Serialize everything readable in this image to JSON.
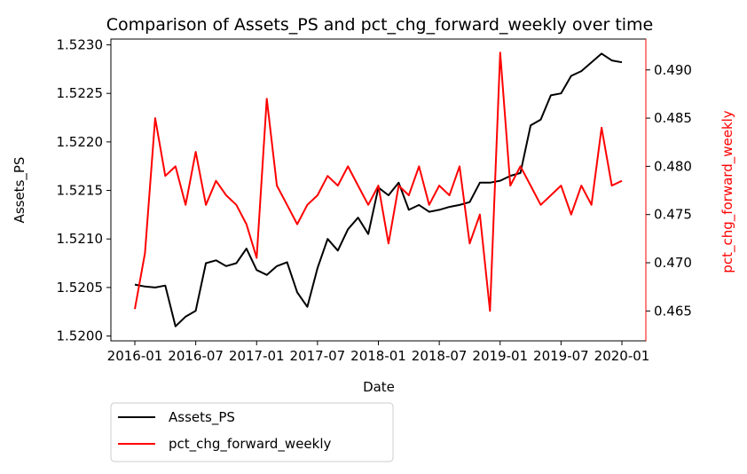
{
  "chart_data": {
    "type": "line",
    "title": "Comparison of Assets_PS and pct_chg_forward_weekly over time",
    "xlabel": "Date",
    "x_ticks": [
      "2016-01",
      "2016-07",
      "2017-01",
      "2017-07",
      "2018-01",
      "2018-07",
      "2019-01",
      "2019-07",
      "2020-01"
    ],
    "xlim": [
      "2016-01",
      "2020-01"
    ],
    "left_axis": {
      "label": "Assets_PS",
      "color": "#000000",
      "ylim": [
        1.51995,
        1.52306
      ],
      "ticks": [
        "1.5200",
        "1.5205",
        "1.5210",
        "1.5215",
        "1.5220",
        "1.5225",
        "1.5230"
      ]
    },
    "right_axis": {
      "label": "pct_chg_forward_weekly",
      "color": "#ff0000",
      "ylim": [
        0.4619,
        0.4932
      ],
      "ticks": [
        "0.465",
        "0.470",
        "0.475",
        "0.480",
        "0.485",
        "0.490"
      ]
    },
    "legend": {
      "placement": "below-left",
      "entries": [
        "Assets_PS",
        "pct_chg_forward_weekly"
      ]
    },
    "series": [
      {
        "name": "Assets_PS",
        "axis": "left",
        "color": "#000000",
        "x": [
          "2016-01",
          "2016-02",
          "2016-03",
          "2016-04",
          "2016-05",
          "2016-06",
          "2016-07",
          "2016-08",
          "2016-09",
          "2016-10",
          "2016-11",
          "2016-12",
          "2017-01",
          "2017-02",
          "2017-03",
          "2017-04",
          "2017-05",
          "2017-06",
          "2017-07",
          "2017-08",
          "2017-09",
          "2017-10",
          "2017-11",
          "2017-12",
          "2018-01",
          "2018-02",
          "2018-03",
          "2018-04",
          "2018-05",
          "2018-06",
          "2018-07",
          "2018-08",
          "2018-09",
          "2018-10",
          "2018-11",
          "2018-12",
          "2019-01",
          "2019-02",
          "2019-03",
          "2019-04",
          "2019-05",
          "2019-06",
          "2019-07",
          "2019-08",
          "2019-09",
          "2019-10",
          "2019-11",
          "2019-12",
          "2020-01"
        ],
        "values": [
          1.52053,
          1.52051,
          1.5205,
          1.52052,
          1.5201,
          1.5202,
          1.52026,
          1.52075,
          1.52078,
          1.52072,
          1.52075,
          1.5209,
          1.52068,
          1.52063,
          1.52072,
          1.52076,
          1.52045,
          1.5203,
          1.5207,
          1.521,
          1.52088,
          1.5211,
          1.52122,
          1.52105,
          1.52153,
          1.52145,
          1.52158,
          1.5213,
          1.52135,
          1.52128,
          1.5213,
          1.52133,
          1.52135,
          1.52138,
          1.52158,
          1.52158,
          1.5216,
          1.52165,
          1.52168,
          1.52217,
          1.52223,
          1.52248,
          1.5225,
          1.52268,
          1.52273,
          1.52282,
          1.52291,
          1.52284,
          1.52282
        ]
      },
      {
        "name": "pct_chg_forward_weekly",
        "axis": "right",
        "color": "#ff0000",
        "x": [
          "2016-01",
          "2016-02",
          "2016-03",
          "2016-04",
          "2016-05",
          "2016-06",
          "2016-07",
          "2016-08",
          "2016-09",
          "2016-10",
          "2016-11",
          "2016-12",
          "2017-01",
          "2017-02",
          "2017-03",
          "2017-04",
          "2017-05",
          "2017-06",
          "2017-07",
          "2017-08",
          "2017-09",
          "2017-10",
          "2017-11",
          "2017-12",
          "2018-01",
          "2018-02",
          "2018-03",
          "2018-04",
          "2018-05",
          "2018-06",
          "2018-07",
          "2018-08",
          "2018-09",
          "2018-10",
          "2018-11",
          "2018-12",
          "2019-01",
          "2019-02",
          "2019-03",
          "2019-04",
          "2019-05",
          "2019-06",
          "2019-07",
          "2019-08",
          "2019-09",
          "2019-10",
          "2019-11",
          "2019-12",
          "2020-01"
        ],
        "values": [
          0.4652,
          0.471,
          0.485,
          0.479,
          0.48,
          0.476,
          0.4815,
          0.476,
          0.4785,
          0.477,
          0.476,
          0.474,
          0.4705,
          0.487,
          0.478,
          0.476,
          0.474,
          0.476,
          0.477,
          0.479,
          0.478,
          0.48,
          0.478,
          0.476,
          0.478,
          0.472,
          0.478,
          0.477,
          0.48,
          0.476,
          0.478,
          0.477,
          0.48,
          0.472,
          0.475,
          0.465,
          0.4918,
          0.478,
          0.48,
          0.478,
          0.476,
          0.477,
          0.478,
          0.475,
          0.478,
          0.476,
          0.484,
          0.478,
          0.4785
        ]
      }
    ]
  }
}
